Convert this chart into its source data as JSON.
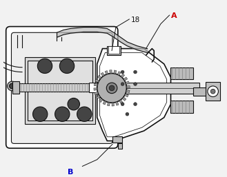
{
  "background_color": "#f2f2f2",
  "label_18": "18",
  "label_A": "A",
  "label_B": "B",
  "lc": "#111111",
  "wh": "#ffffff",
  "lg": "#bbbbbb",
  "dg": "#444444",
  "mg": "#777777",
  "figsize": [
    3.29,
    2.57
  ],
  "dpi": 100
}
